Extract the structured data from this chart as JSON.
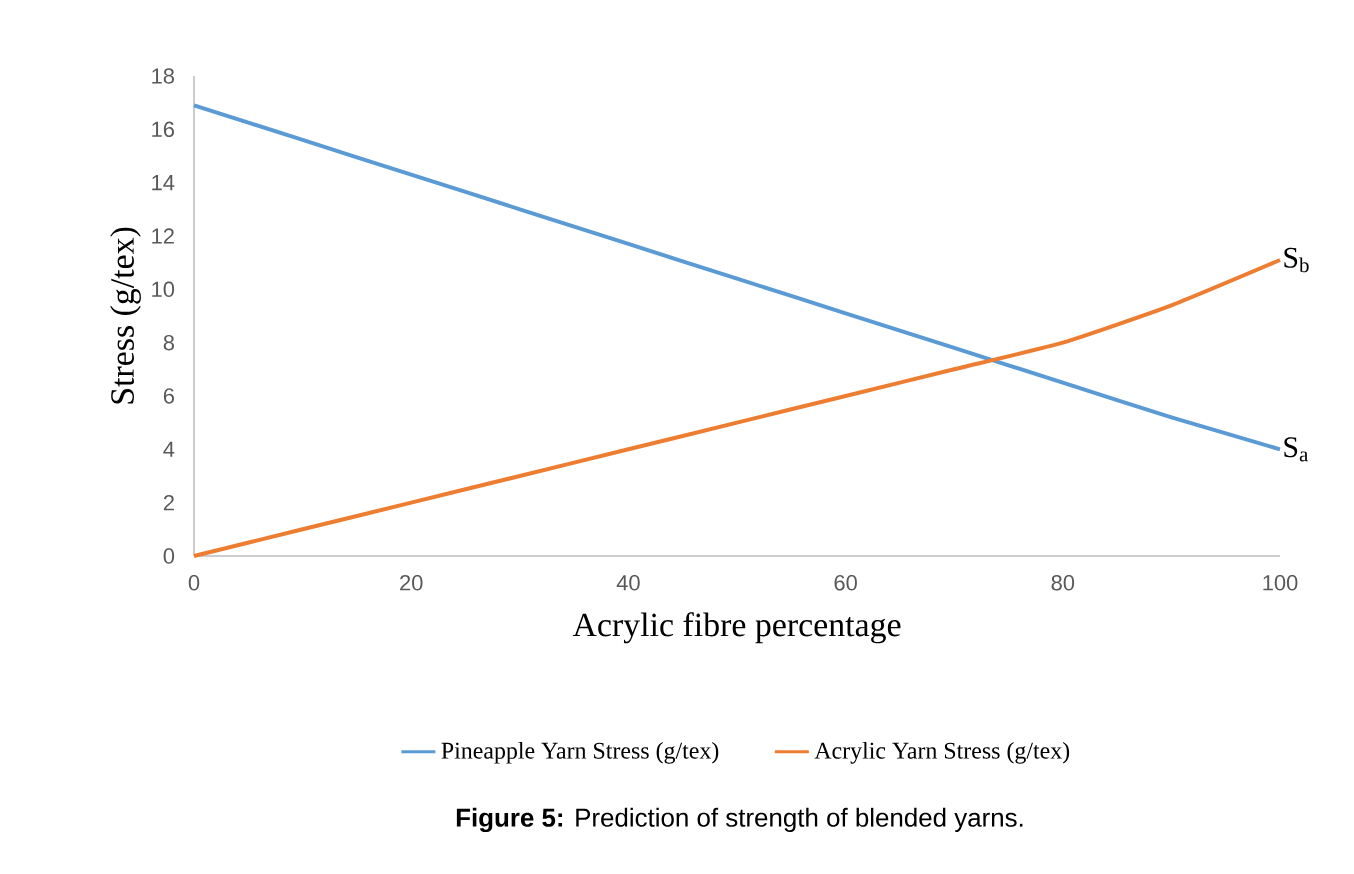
{
  "chart_data": {
    "type": "line",
    "xlabel": "Acrylic fibre percentage",
    "ylabel": "Stress (g/tex)",
    "x": [
      0,
      10,
      20,
      30,
      40,
      50,
      60,
      70,
      80,
      90,
      100
    ],
    "series": [
      {
        "name": "Pineapple Yarn Stress (g/tex)",
        "color": "#5b9bd5",
        "values": [
          16.9,
          15.6,
          14.3,
          13.0,
          11.7,
          10.4,
          9.1,
          7.8,
          6.5,
          5.2,
          4.0
        ]
      },
      {
        "name": "Acrylic Yarn Stress (g/tex)",
        "color": "#ed7d31",
        "values": [
          0,
          1,
          2,
          3,
          4,
          5,
          6,
          7,
          8,
          9.4,
          11.1
        ]
      }
    ],
    "xlim": [
      0,
      100
    ],
    "xticks": [
      0,
      20,
      40,
      60,
      80,
      100
    ],
    "ylim": [
      0,
      18
    ],
    "yticks": [
      0,
      2,
      4,
      6,
      8,
      10,
      12,
      14,
      16,
      18
    ],
    "grid": false,
    "legend": "bottom",
    "marker": "none",
    "line_style": "solid",
    "annotations": [
      {
        "text": "S$_{a}$",
        "x": 100,
        "y": 4.0
      },
      {
        "text": "S$_{b}$",
        "x": 100,
        "y": 11.1
      },
      "**Figure 5:** Prediction of strength of blended yarns."
    ]
  }
}
